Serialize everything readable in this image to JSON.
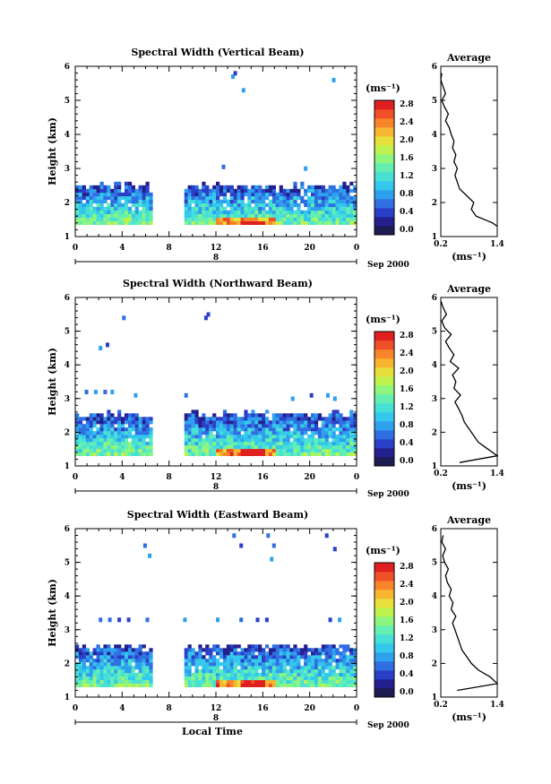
{
  "colorbar_colors": [
    "#1c1c50",
    "#23208e",
    "#2a3fc8",
    "#2f6fe2",
    "#2fa0ee",
    "#33c8ec",
    "#48e0d6",
    "#64efb0",
    "#8ef57e",
    "#bff24e",
    "#e8e03a",
    "#f8b530",
    "#f8852a",
    "#f05028",
    "#e02020"
  ],
  "colorbar_ticks": [
    "0.0",
    "0.4",
    "0.8",
    "1.2",
    "1.6",
    "2.0",
    "2.4",
    "2.8"
  ],
  "colorbar_unit": "(ms⁻¹)",
  "avg_title": "Average",
  "avg_xlabel": "(ms⁻¹)",
  "date_day": "8",
  "date_label": "Sep 2000",
  "xlabel": "Local Time",
  "ylabel": "Height (km)",
  "panels": [
    {
      "title": "Spectral Width (Vertical Beam)",
      "xticks": [
        "0",
        "4",
        "8",
        "12",
        "16",
        "20",
        "0"
      ],
      "avg_ticks": [
        "0.2",
        "1.4"
      ]
    },
    {
      "title": "Spectral Width (Northward Beam)",
      "xticks": [
        "0",
        "4",
        "8",
        "12",
        "16",
        "20",
        "0"
      ],
      "avg_ticks": [
        "0.2",
        "1.4"
      ]
    },
    {
      "title": "Spectral Width (Eastward Beam)",
      "xticks": [
        "0",
        "4",
        "8",
        "12",
        "16",
        "20",
        "0"
      ],
      "avg_ticks": [
        "0.2",
        "1.4"
      ]
    }
  ],
  "yticks": [
    "1",
    "2",
    "3",
    "4",
    "5",
    "6"
  ],
  "chart_data": [
    {
      "type": "heatmap",
      "title": "Spectral Width (Vertical Beam)",
      "xlabel": "",
      "ylabel": "Height (km)",
      "xlim": [
        0,
        24
      ],
      "ylim": [
        1,
        6
      ],
      "data_gap_hours": [
        6.4,
        9.1
      ],
      "main_layer_km": [
        1.35,
        2.55
      ],
      "colorbar_range": [
        0.0,
        3.0
      ],
      "sparse_points": [
        [
          13.3,
          5.7
        ],
        [
          13.5,
          5.8
        ],
        [
          14.2,
          5.3
        ],
        [
          21.9,
          5.6
        ],
        [
          12.5,
          3.05
        ],
        [
          19.5,
          3.0
        ]
      ],
      "average_profile": {
        "title": "Average",
        "xlabel": "(ms⁻¹)",
        "xlim": [
          0.2,
          1.4
        ],
        "ylim": [
          1,
          6
        ],
        "height": [
          1.3,
          1.4,
          1.6,
          1.8,
          2.0,
          2.2,
          2.4,
          2.6,
          2.8,
          3.0,
          3.2,
          3.4,
          3.6,
          3.8,
          4.0,
          4.2,
          4.4,
          4.6,
          4.8,
          5.0,
          5.2,
          5.4,
          5.6,
          5.8
        ],
        "width": [
          1.4,
          1.3,
          0.95,
          0.85,
          0.9,
          0.75,
          0.6,
          0.55,
          0.5,
          0.55,
          0.48,
          0.52,
          0.45,
          0.48,
          0.42,
          0.38,
          0.3,
          0.36,
          0.28,
          0.22,
          0.3,
          0.25,
          0.2,
          0.22
        ]
      }
    },
    {
      "type": "heatmap",
      "title": "Spectral Width (Northward Beam)",
      "xlabel": "",
      "ylabel": "Height (km)",
      "xlim": [
        0,
        24
      ],
      "ylim": [
        1,
        6
      ],
      "data_gap_hours": [
        6.4,
        9.1
      ],
      "main_layer_km": [
        1.3,
        2.6
      ],
      "colorbar_range": [
        0.0,
        3.0
      ],
      "sparse_points": [
        [
          4.0,
          5.4
        ],
        [
          11.0,
          5.4
        ],
        [
          11.2,
          5.5
        ],
        [
          2.0,
          4.5
        ],
        [
          2.6,
          4.6
        ],
        [
          0.8,
          3.2
        ],
        [
          1.6,
          3.2
        ],
        [
          2.4,
          3.2
        ],
        [
          3.0,
          3.2
        ],
        [
          5.0,
          3.1
        ],
        [
          9.3,
          3.1
        ],
        [
          18.4,
          3.0
        ],
        [
          20.0,
          3.1
        ],
        [
          21.4,
          3.1
        ],
        [
          22.0,
          3.0
        ]
      ],
      "average_profile": {
        "title": "Average",
        "xlabel": "(ms⁻¹)",
        "xlim": [
          0.2,
          1.4
        ],
        "ylim": [
          1,
          6
        ],
        "height": [
          1.1,
          1.3,
          1.5,
          1.7,
          1.9,
          2.1,
          2.3,
          2.5,
          2.7,
          2.9,
          3.1,
          3.3,
          3.5,
          3.7,
          3.9,
          4.1,
          4.3,
          4.5,
          4.7,
          4.9,
          5.1,
          5.3,
          5.5,
          5.7,
          5.9
        ],
        "width": [
          0.6,
          1.4,
          1.2,
          1.0,
          0.9,
          0.8,
          0.7,
          0.65,
          0.58,
          0.5,
          0.62,
          0.48,
          0.52,
          0.45,
          0.58,
          0.4,
          0.48,
          0.38,
          0.3,
          0.42,
          0.28,
          0.22,
          0.32,
          0.25,
          0.2
        ]
      }
    },
    {
      "type": "heatmap",
      "title": "Spectral Width (Eastward Beam)",
      "xlabel": "Local Time",
      "ylabel": "Height (km)",
      "xlim": [
        0,
        24
      ],
      "ylim": [
        1,
        6
      ],
      "data_gap_hours": [
        6.4,
        9.1
      ],
      "main_layer_km": [
        1.3,
        2.55
      ],
      "colorbar_range": [
        0.0,
        3.0
      ],
      "sparse_points": [
        [
          5.8,
          5.5
        ],
        [
          6.2,
          5.2
        ],
        [
          13.4,
          5.8
        ],
        [
          14.0,
          5.5
        ],
        [
          16.3,
          5.8
        ],
        [
          16.8,
          5.5
        ],
        [
          16.6,
          5.1
        ],
        [
          21.3,
          5.8
        ],
        [
          22.0,
          5.4
        ],
        [
          2.0,
          3.3
        ],
        [
          2.8,
          3.3
        ],
        [
          3.6,
          3.3
        ],
        [
          4.4,
          3.3
        ],
        [
          6.0,
          3.3
        ],
        [
          9.2,
          3.3
        ],
        [
          12.0,
          3.3
        ],
        [
          14.0,
          3.3
        ],
        [
          15.4,
          3.3
        ],
        [
          16.2,
          3.3
        ],
        [
          21.6,
          3.3
        ],
        [
          22.4,
          3.3
        ]
      ],
      "average_profile": {
        "title": "Average",
        "xlabel": "(ms⁻¹)",
        "xlim": [
          0.2,
          1.4
        ],
        "ylim": [
          1,
          6
        ],
        "height": [
          1.2,
          1.4,
          1.6,
          1.8,
          2.0,
          2.2,
          2.4,
          2.6,
          2.8,
          3.0,
          3.2,
          3.4,
          3.6,
          3.8,
          4.0,
          4.2,
          4.4,
          4.6,
          4.8,
          5.0,
          5.2,
          5.4,
          5.6,
          5.8
        ],
        "width": [
          0.55,
          1.4,
          1.25,
          1.0,
          0.85,
          0.75,
          0.65,
          0.6,
          0.55,
          0.5,
          0.45,
          0.52,
          0.42,
          0.46,
          0.38,
          0.42,
          0.34,
          0.3,
          0.36,
          0.28,
          0.24,
          0.3,
          0.22,
          0.25
        ]
      }
    }
  ]
}
